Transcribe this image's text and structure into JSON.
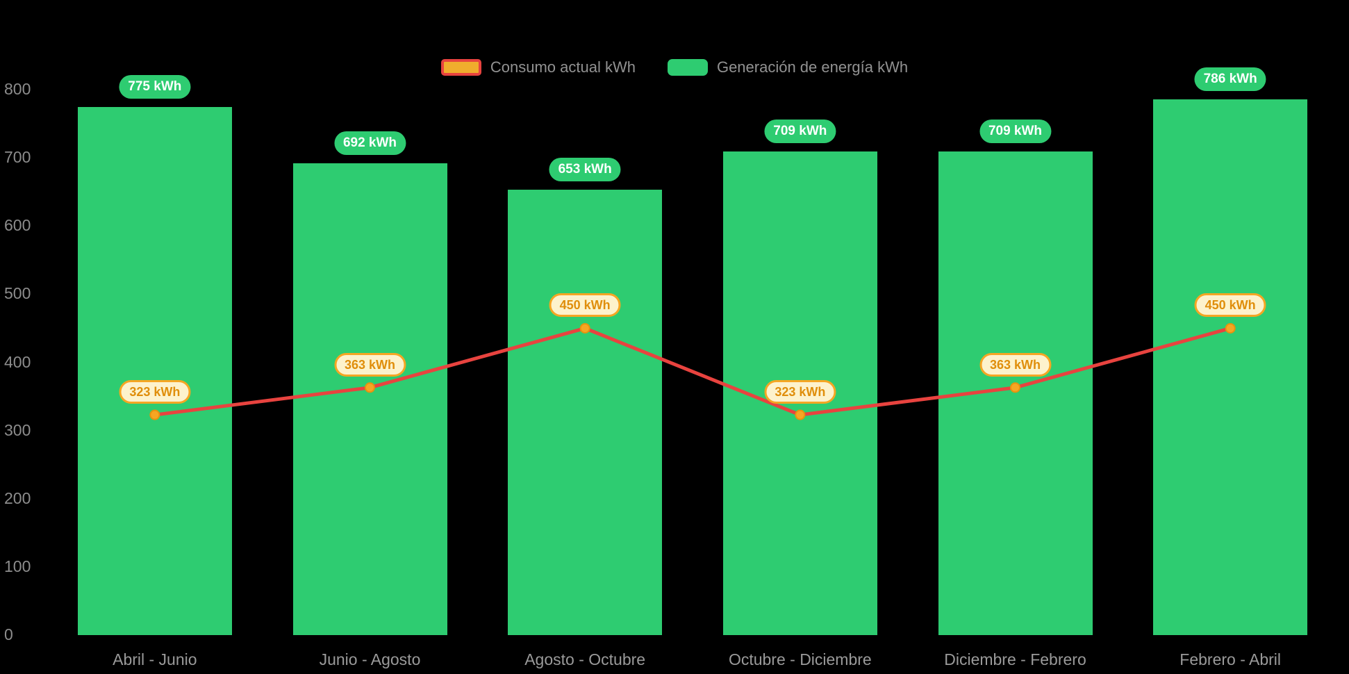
{
  "chart_data": {
    "type": "bar",
    "subtype": "bar-and-line-combo",
    "unit": "kWh",
    "categories": [
      "Abril - Junio",
      "Junio - Agosto",
      "Agosto - Octubre",
      "Octubre - Diciembre",
      "Diciembre - Febrero",
      "Febrero - Abril"
    ],
    "series": [
      {
        "name": "Generación de energía kWh",
        "type": "bar",
        "color": "#2ecc71",
        "values": [
          775,
          692,
          653,
          709,
          709,
          786
        ],
        "labels": [
          "775 kWh",
          "692 kWh",
          "653 kWh",
          "709 kWh",
          "709 kWh",
          "786 kWh"
        ]
      },
      {
        "name": "Consumo actual kWh",
        "type": "line",
        "color": "#e8433f",
        "point_color": "#f6a623",
        "point_stroke": "#e8920e",
        "values": [
          323,
          363,
          450,
          323,
          363,
          450
        ],
        "labels": [
          "323 kWh",
          "363 kWh",
          "450 kWh",
          "323 kWh",
          "363 kWh",
          "450 kWh"
        ]
      }
    ],
    "y_axis": {
      "min": 0,
      "max": 800,
      "ticks": [
        0,
        100,
        200,
        300,
        400,
        500,
        600,
        700,
        800
      ]
    },
    "grid": false,
    "legend": {
      "position": "top-center",
      "items": [
        {
          "label": "Consumo actual kWh",
          "swatch_fill": "#f0ad2d",
          "swatch_border": "#e8433f"
        },
        {
          "label": "Generación de energía kWh",
          "swatch_fill": "#2ecc71",
          "swatch_border": "#2ecc71"
        }
      ]
    }
  },
  "colors": {
    "background": "#000000",
    "axis_text": "#8d8d8d",
    "category_text": "#9a9a9a",
    "bar_label_bg": "#2ecc71",
    "bar_label_text": "#ffffff",
    "line_label_bg": "#fdf2cc",
    "line_label_border": "#f5a623",
    "line_label_text": "#e08e0b"
  }
}
